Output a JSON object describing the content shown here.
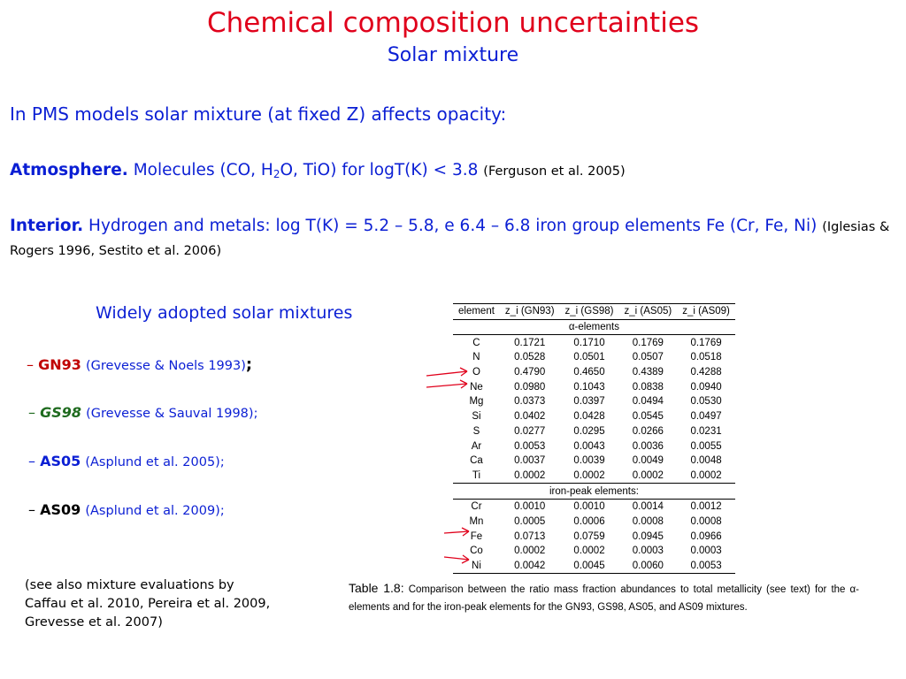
{
  "title": "Chemical composition uncertainties",
  "subtitle": "Solar mixture",
  "intro": "In PMS models solar mixture (at fixed Z) affects opacity:",
  "atmosphere": {
    "label": "Atmosphere.",
    "text_a": "Molecules (CO, H",
    "sub": "2",
    "text_b": "O, TiO) for logT(K) < 3.8",
    "ref": "(Ferguson et al. 2005)"
  },
  "interior": {
    "label": "Interior.",
    "text": "Hydrogen and metals: log T(K) = 5.2 – 5.8, e 6.4 – 6.8 iron group elements Fe (Cr, Fe, Ni)",
    "ref": "(Iglesias & Rogers 1996, Sestito et al. 2006)"
  },
  "widely_adopted": "Widely adopted solar mixtures",
  "mixtures": [
    {
      "dash": "–",
      "name": "GN93",
      "ref": "(Grevesse & Noels 1993)",
      "end": ";",
      "color": "#c00000"
    },
    {
      "dash": "–",
      "name": "GS98",
      "ref": "(Grevesse & Sauval 1998);",
      "end": "",
      "color": "#1f6b1f"
    },
    {
      "dash": "–",
      "name": "AS05",
      "ref": "(Asplund et al. 2005);",
      "end": "",
      "color": "#0b1fd4"
    },
    {
      "dash": "–",
      "name": "AS09",
      "ref": "(Asplund et al. 2009);",
      "end": "",
      "color": "#000000"
    }
  ],
  "see_also": [
    "(see also mixture evaluations by",
    "Caffau et al. 2010, Pereira et al. 2009,",
    "Grevesse et al. 2007)"
  ],
  "table": {
    "headers": [
      "element",
      "z_i (GN93)",
      "z_i (GS98)",
      "z_i (AS05)",
      "z_i (AS09)"
    ],
    "group1": "α-elements",
    "rows1": [
      [
        "C",
        "0.1721",
        "0.1710",
        "0.1769",
        "0.1769"
      ],
      [
        "N",
        "0.0528",
        "0.0501",
        "0.0507",
        "0.0518"
      ],
      [
        "O",
        "0.4790",
        "0.4650",
        "0.4389",
        "0.4288"
      ],
      [
        "Ne",
        "0.0980",
        "0.1043",
        "0.0838",
        "0.0940"
      ],
      [
        "Mg",
        "0.0373",
        "0.0397",
        "0.0494",
        "0.0530"
      ],
      [
        "Si",
        "0.0402",
        "0.0428",
        "0.0545",
        "0.0497"
      ],
      [
        "S",
        "0.0277",
        "0.0295",
        "0.0266",
        "0.0231"
      ],
      [
        "Ar",
        "0.0053",
        "0.0043",
        "0.0036",
        "0.0055"
      ],
      [
        "Ca",
        "0.0037",
        "0.0039",
        "0.0049",
        "0.0048"
      ],
      [
        "Ti",
        "0.0002",
        "0.0002",
        "0.0002",
        "0.0002"
      ]
    ],
    "group2": "iron-peak elements:",
    "rows2": [
      [
        "Cr",
        "0.0010",
        "0.0010",
        "0.0014",
        "0.0012"
      ],
      [
        "Mn",
        "0.0005",
        "0.0006",
        "0.0008",
        "0.0008"
      ],
      [
        "Fe",
        "0.0713",
        "0.0759",
        "0.0945",
        "0.0966"
      ],
      [
        "Co",
        "0.0002",
        "0.0002",
        "0.0003",
        "0.0003"
      ],
      [
        "Ni",
        "0.0042",
        "0.0045",
        "0.0060",
        "0.0053"
      ]
    ]
  },
  "caption": {
    "label": "Table 1.8:",
    "text": "Comparison between the ratio mass fraction abundances to total metallicity (see text) for the α-elements and for the iron-peak elements for the GN93, GS98, AS05, and AS09 mixtures."
  },
  "colors": {
    "title": "#e0001b",
    "text": "#0b1fd4",
    "arrow": "#e0001b"
  }
}
